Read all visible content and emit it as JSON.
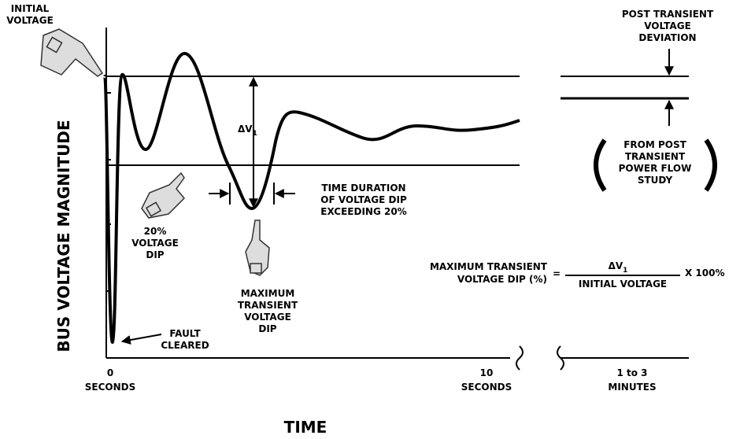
{
  "axis": {
    "y_label": "BUS VOLTAGE MAGNITUDE",
    "x_label": "TIME",
    "x_points": [
      {
        "value": "0",
        "unit": "SECONDS"
      },
      {
        "value": "10",
        "unit": "SECONDS"
      },
      {
        "value": "1 to 3",
        "unit": "MINUTES"
      }
    ]
  },
  "labels": {
    "initial_voltage": [
      "INITIAL",
      "VOLTAGE"
    ],
    "delta_v": {
      "main": "ΔV",
      "sub": "1"
    },
    "dip_20": [
      "20%",
      "VOLTAGE",
      "DIP"
    ],
    "time_duration": [
      "TIME DURATION",
      "OF VOLTAGE DIP",
      "EXCEEDING 20%"
    ],
    "max_dip": [
      "MAXIMUM",
      "TRANSIENT",
      "VOLTAGE",
      "DIP"
    ],
    "fault_cleared": [
      "FAULT",
      "CLEARED"
    ],
    "post_transient": [
      "POST TRANSIENT",
      "VOLTAGE",
      "DEVIATION"
    ],
    "power_flow": [
      "FROM POST",
      "TRANSIENT",
      "POWER FLOW",
      "STUDY"
    ]
  },
  "formula": {
    "lhs": [
      "MAXIMUM TRANSIENT",
      "VOLTAGE DIP (%)"
    ],
    "equals": "=",
    "numerator": {
      "main": "ΔV",
      "sub": "1"
    },
    "denominator": "INITIAL VOLTAGE",
    "factor": "X 100%"
  }
}
